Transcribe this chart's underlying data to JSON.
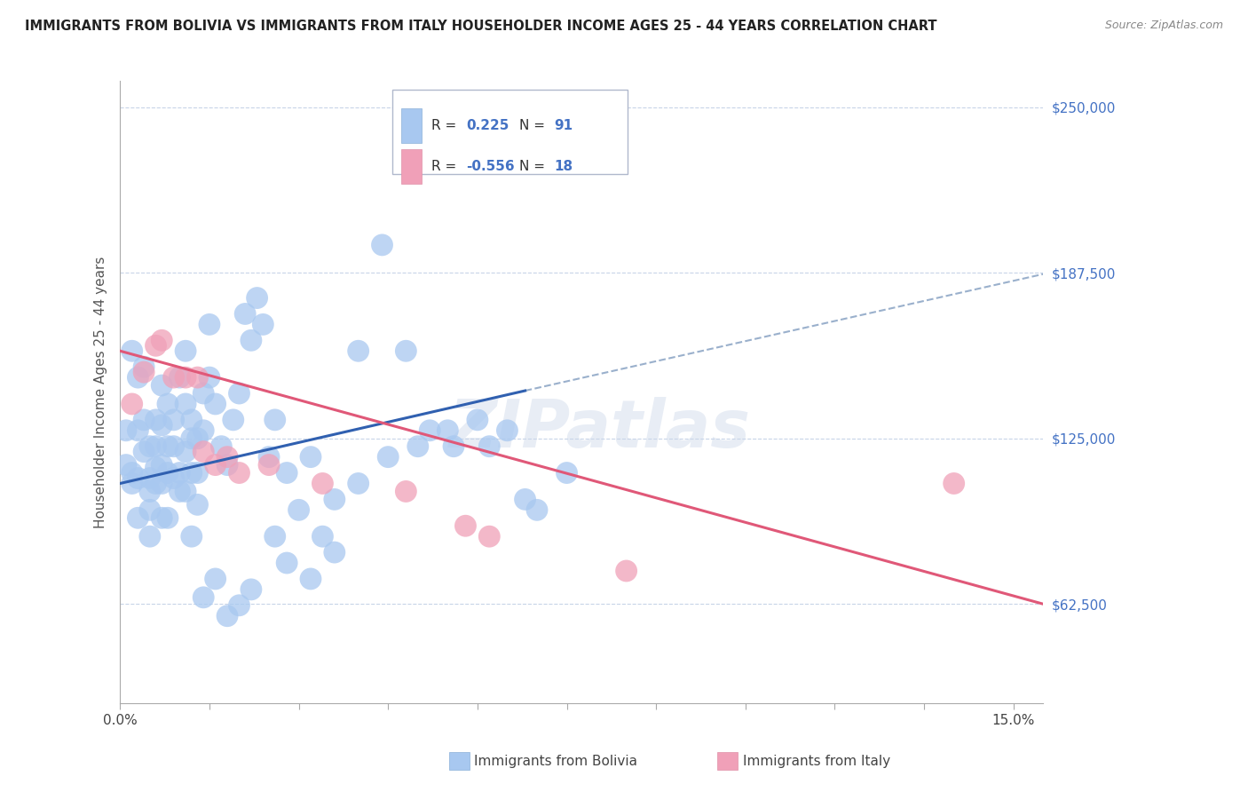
{
  "title": "IMMIGRANTS FROM BOLIVIA VS IMMIGRANTS FROM ITALY HOUSEHOLDER INCOME AGES 25 - 44 YEARS CORRELATION CHART",
  "source": "Source: ZipAtlas.com",
  "ylabel": "Householder Income Ages 25 - 44 years",
  "xlim": [
    0.0,
    0.155
  ],
  "ylim": [
    25000,
    260000
  ],
  "yticks": [
    62500,
    125000,
    187500,
    250000
  ],
  "ytick_labels": [
    "$62,500",
    "$125,000",
    "$187,500",
    "$250,000"
  ],
  "xticks": [
    0.0,
    0.015,
    0.03,
    0.045,
    0.06,
    0.075,
    0.09,
    0.105,
    0.12,
    0.135,
    0.15
  ],
  "xtick_labels": [
    "0.0%",
    "",
    "",
    "",
    "",
    "",
    "",
    "",
    "",
    "",
    "15.0%"
  ],
  "bolivia_R": 0.225,
  "bolivia_N": 91,
  "italy_R": -0.556,
  "italy_N": 18,
  "bolivia_color": "#a8c8f0",
  "italy_color": "#f0a0b8",
  "bolivia_line_color": "#3060b0",
  "italy_line_color": "#e05878",
  "dashed_line_color": "#9ab0cc",
  "watermark": "ZIPatlas",
  "bolivia_x": [
    0.001,
    0.001,
    0.002,
    0.002,
    0.002,
    0.003,
    0.003,
    0.003,
    0.003,
    0.004,
    0.004,
    0.004,
    0.005,
    0.005,
    0.005,
    0.005,
    0.005,
    0.006,
    0.006,
    0.006,
    0.006,
    0.007,
    0.007,
    0.007,
    0.007,
    0.007,
    0.008,
    0.008,
    0.008,
    0.008,
    0.009,
    0.009,
    0.009,
    0.01,
    0.01,
    0.01,
    0.011,
    0.011,
    0.011,
    0.011,
    0.012,
    0.012,
    0.012,
    0.013,
    0.013,
    0.013,
    0.014,
    0.014,
    0.015,
    0.015,
    0.016,
    0.017,
    0.018,
    0.019,
    0.02,
    0.021,
    0.022,
    0.023,
    0.024,
    0.025,
    0.026,
    0.028,
    0.03,
    0.032,
    0.034,
    0.036,
    0.04,
    0.044,
    0.048,
    0.052,
    0.056,
    0.06,
    0.062,
    0.065,
    0.068,
    0.07,
    0.075,
    0.04,
    0.045,
    0.05,
    0.055,
    0.028,
    0.032,
    0.036,
    0.026,
    0.022,
    0.02,
    0.018,
    0.016,
    0.014,
    0.012
  ],
  "bolivia_y": [
    115000,
    128000,
    112000,
    158000,
    108000,
    148000,
    128000,
    110000,
    95000,
    152000,
    132000,
    120000,
    122000,
    110000,
    105000,
    98000,
    88000,
    132000,
    122000,
    114000,
    108000,
    145000,
    130000,
    115000,
    108000,
    95000,
    138000,
    122000,
    112000,
    95000,
    132000,
    122000,
    110000,
    148000,
    112000,
    105000,
    158000,
    138000,
    120000,
    105000,
    132000,
    125000,
    112000,
    125000,
    112000,
    100000,
    142000,
    128000,
    168000,
    148000,
    138000,
    122000,
    115000,
    132000,
    142000,
    172000,
    162000,
    178000,
    168000,
    118000,
    132000,
    112000,
    98000,
    118000,
    88000,
    102000,
    158000,
    198000,
    158000,
    128000,
    122000,
    132000,
    122000,
    128000,
    102000,
    98000,
    112000,
    108000,
    118000,
    122000,
    128000,
    78000,
    72000,
    82000,
    88000,
    68000,
    62000,
    58000,
    72000,
    65000,
    88000
  ],
  "italy_x": [
    0.002,
    0.004,
    0.006,
    0.007,
    0.009,
    0.011,
    0.013,
    0.014,
    0.016,
    0.018,
    0.02,
    0.025,
    0.034,
    0.048,
    0.058,
    0.062,
    0.085,
    0.14
  ],
  "italy_y": [
    138000,
    150000,
    160000,
    162000,
    148000,
    148000,
    148000,
    120000,
    115000,
    118000,
    112000,
    115000,
    108000,
    105000,
    92000,
    88000,
    75000,
    108000
  ],
  "bolivia_line_x0": 0.0,
  "bolivia_line_y0": 108000,
  "bolivia_line_x1": 0.068,
  "bolivia_line_y1": 143000,
  "dashed_line_x0": 0.068,
  "dashed_line_y0": 143000,
  "dashed_line_x1": 0.155,
  "dashed_line_y1": 187000,
  "italy_line_x0": 0.0,
  "italy_line_y0": 158000,
  "italy_line_x1": 0.155,
  "italy_line_y1": 62500
}
